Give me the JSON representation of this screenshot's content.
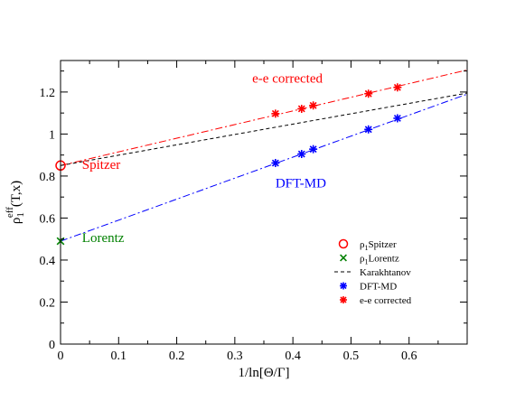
{
  "chart_data": {
    "type": "scatter",
    "xlabel": "1/ln[Θ/Γ]",
    "ylabel_base": "ρ",
    "ylabel_sub": "1",
    "ylabel_sup": "eff",
    "ylabel_tail": "(T,x)",
    "xlim": [
      0,
      0.7
    ],
    "ylim": [
      0,
      1.35
    ],
    "xticks": [
      {
        "value": 0,
        "label": "0"
      },
      {
        "value": 0.1,
        "label": "0.1"
      },
      {
        "value": 0.2,
        "label": "0.2"
      },
      {
        "value": 0.3,
        "label": "0.3"
      },
      {
        "value": 0.4,
        "label": "0.4"
      },
      {
        "value": 0.5,
        "label": "0.5"
      },
      {
        "value": 0.6,
        "label": "0.6"
      }
    ],
    "yticks": [
      {
        "value": 0,
        "label": "0"
      },
      {
        "value": 0.2,
        "label": "0.2"
      },
      {
        "value": 0.4,
        "label": "0.4"
      },
      {
        "value": 0.6,
        "label": "0.6"
      },
      {
        "value": 0.8,
        "label": "0.8"
      },
      {
        "value": 1.0,
        "label": "1"
      },
      {
        "value": 1.2,
        "label": "1.2"
      }
    ],
    "grid": false,
    "legend_position": "bottom-right",
    "series": [
      {
        "name": "ρ₁Spitzer",
        "legend_base": "ρ",
        "legend_sub": "1",
        "legend_tail": "Spitzer",
        "kind": "points",
        "marker": "circle",
        "color": "#ff0000",
        "points": [
          [
            0,
            0.85
          ]
        ]
      },
      {
        "name": "ρ₁Lorentz",
        "legend_base": "ρ",
        "legend_sub": "1",
        "legend_tail": "Lorentz",
        "kind": "points",
        "marker": "x",
        "color": "#008000",
        "points": [
          [
            0,
            0.49
          ]
        ]
      },
      {
        "name": "Karakhtanov",
        "kind": "line",
        "dash": "dashed",
        "color": "#000000",
        "points": [
          [
            0,
            0.85
          ],
          [
            0.7,
            1.195
          ]
        ]
      },
      {
        "name": "DFT-MD",
        "kind": "points",
        "marker": "star",
        "color": "#0000ff",
        "points": [
          [
            0.37,
            0.862
          ],
          [
            0.415,
            0.905
          ],
          [
            0.435,
            0.928
          ],
          [
            0.53,
            1.022
          ],
          [
            0.58,
            1.075
          ]
        ]
      },
      {
        "name": "e-e corrected",
        "kind": "points",
        "marker": "star",
        "color": "#ff0000",
        "points": [
          [
            0.37,
            1.097
          ],
          [
            0.415,
            1.12
          ],
          [
            0.435,
            1.136
          ],
          [
            0.53,
            1.192
          ],
          [
            0.58,
            1.222
          ]
        ]
      }
    ],
    "fit_lines": [
      {
        "for": "DFT-MD",
        "color": "#0000ff",
        "dash": "dashdot",
        "points": [
          [
            0,
            0.49
          ],
          [
            0.7,
            1.19
          ]
        ]
      },
      {
        "for": "e-e corrected",
        "color": "#ff0000",
        "dash": "dashdot",
        "points": [
          [
            0,
            0.85
          ],
          [
            0.7,
            1.305
          ]
        ]
      }
    ],
    "annotations": [
      {
        "text": "e-e corrected",
        "color": "#ff0000",
        "x": 0.33,
        "y": 1.245
      },
      {
        "text": "Spitzer",
        "color": "#ff0000",
        "x": 0.037,
        "y": 0.835
      },
      {
        "text": "DFT-MD",
        "color": "#0000ff",
        "x": 0.37,
        "y": 0.745
      },
      {
        "text": "Lorentz",
        "color": "#008000",
        "x": 0.037,
        "y": 0.485
      }
    ]
  }
}
